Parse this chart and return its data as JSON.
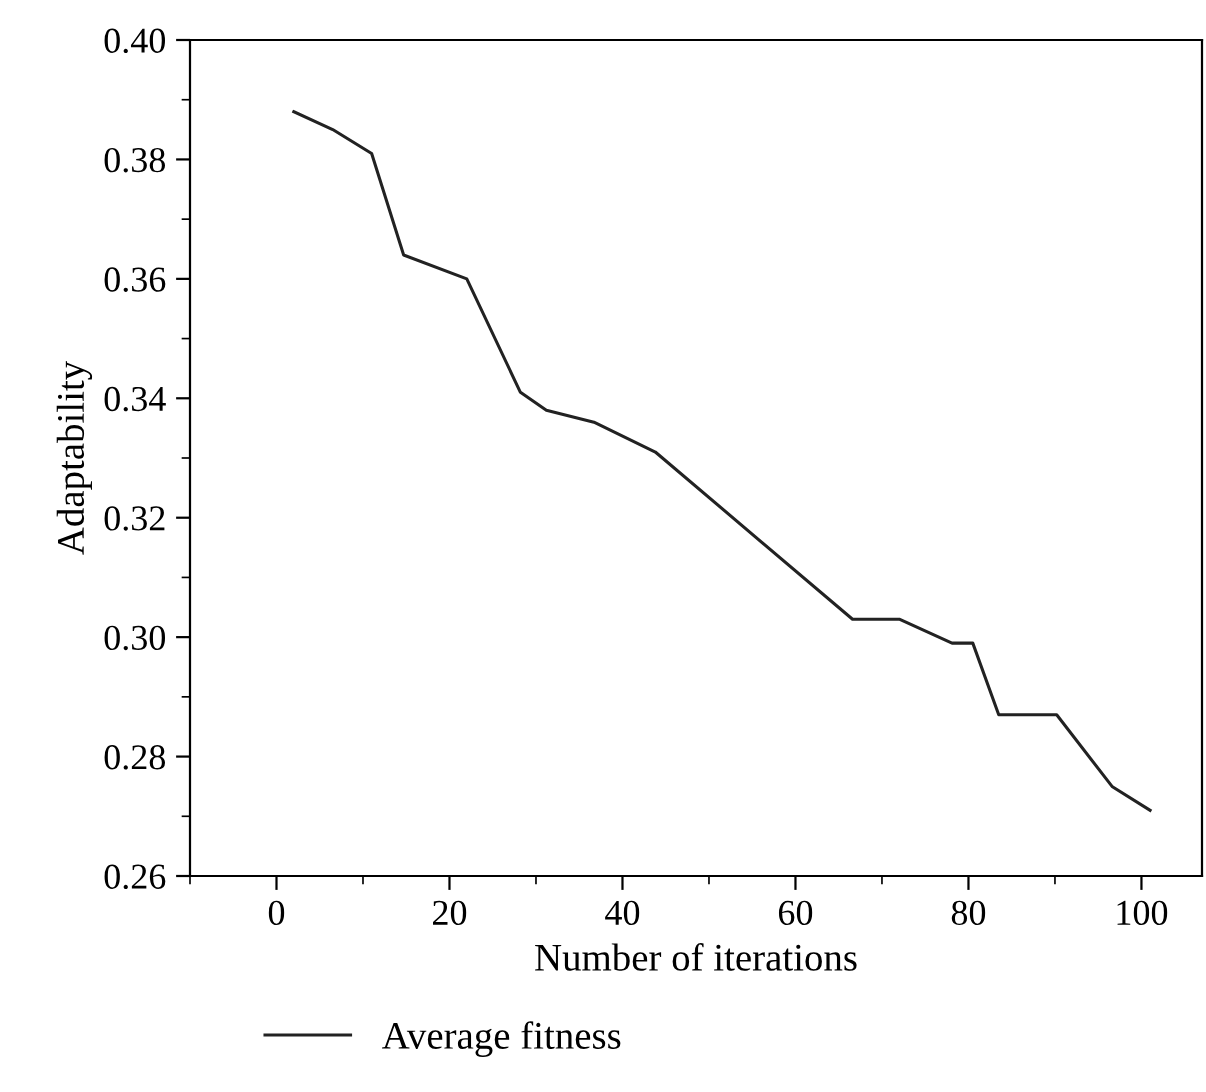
{
  "chart_data": {
    "type": "line",
    "xlabel": "Number of iterations",
    "ylabel": "Adaptability",
    "x": [
      2,
      6.5,
      11,
      14.7,
      22,
      28.2,
      31.2,
      36.7,
      43.8,
      66.6,
      72,
      78.1,
      80.5,
      83.5,
      90.2,
      96.6,
      101
    ],
    "series": [
      {
        "name": "Average fitness",
        "color": "#222222",
        "values": [
          0.388,
          0.385,
          0.381,
          0.364,
          0.36,
          0.341,
          0.338,
          0.336,
          0.331,
          0.303,
          0.303,
          0.299,
          0.299,
          0.287,
          0.287,
          0.275,
          0.271
        ]
      }
    ],
    "xlim": [
      -10,
      107
    ],
    "xticks": [
      0,
      20,
      40,
      60,
      80,
      100
    ],
    "ylim": [
      0.26,
      0.4
    ],
    "yticks": [
      {
        "value": 0.26,
        "label": "0.26"
      },
      {
        "value": 0.28,
        "label": "0.28"
      },
      {
        "value": 0.3,
        "label": "0.30"
      },
      {
        "value": 0.32,
        "label": "0.32"
      },
      {
        "value": 0.34,
        "label": "0.34"
      },
      {
        "value": 0.36,
        "label": "0.36"
      },
      {
        "value": 0.38,
        "label": "0.38"
      },
      {
        "value": 0.4,
        "label": "0.40"
      }
    ],
    "grid": false,
    "legend": "bottom left",
    "marker": "none",
    "line_style": "solid"
  }
}
